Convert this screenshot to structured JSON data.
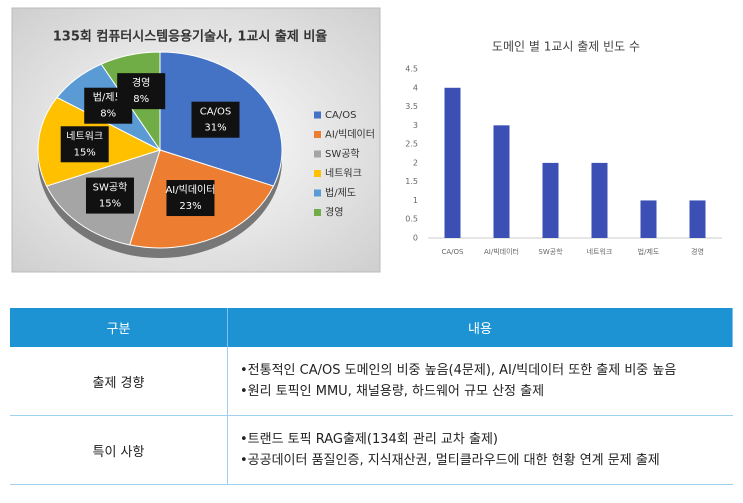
{
  "chart_data": [
    {
      "type": "pie",
      "title": "135회 컴퓨터시스템응용기술사, 1교시 출제 비율",
      "categories": [
        "CA/OS",
        "AI/빅데이터",
        "SW공학",
        "네트워크",
        "법/제도",
        "경영"
      ],
      "values": [
        31,
        23,
        15,
        15,
        8,
        8
      ],
      "value_labels": [
        "31%",
        "23%",
        "15%",
        "15%",
        "8%",
        "8%"
      ],
      "colors": [
        "#4472c4",
        "#ed7d31",
        "#a5a5a5",
        "#ffc000",
        "#5b9bd5",
        "#70ad47"
      ],
      "legend": "right"
    },
    {
      "type": "bar",
      "title": "도메인 별 1교시 출제 빈도 수",
      "categories": [
        "CA/OS",
        "AI/빅데이터",
        "SW공학",
        "네트워크",
        "법/제도",
        "경영"
      ],
      "values": [
        4,
        3,
        2,
        2,
        1,
        1
      ],
      "color": "#3b4fb5",
      "ylim": [
        0,
        4.5
      ],
      "yticks": [
        0,
        0.5,
        1,
        1.5,
        2,
        2.5,
        3,
        3.5,
        4,
        4.5
      ],
      "grid": false
    }
  ],
  "table": {
    "header": [
      "구분",
      "내용"
    ],
    "rows": [
      [
        "출제 경향",
        [
          "•전통적인 CA/OS 도메인의 비중 높음(4문제), AI/빅데이터 또한 출제 비중 높음",
          "•원리 토픽인 MMU, 채널용량, 하드웨어 규모 산정 출제"
        ]
      ],
      [
        "특이 사항",
        [
          "•트랜드 토픽 RAG출제(134회 관리 교차 출제)",
          "•공공데이터 품질인증, 지식재산권, 멀티클라우드에 대한 현황 연계 문제 출제"
        ]
      ]
    ]
  }
}
